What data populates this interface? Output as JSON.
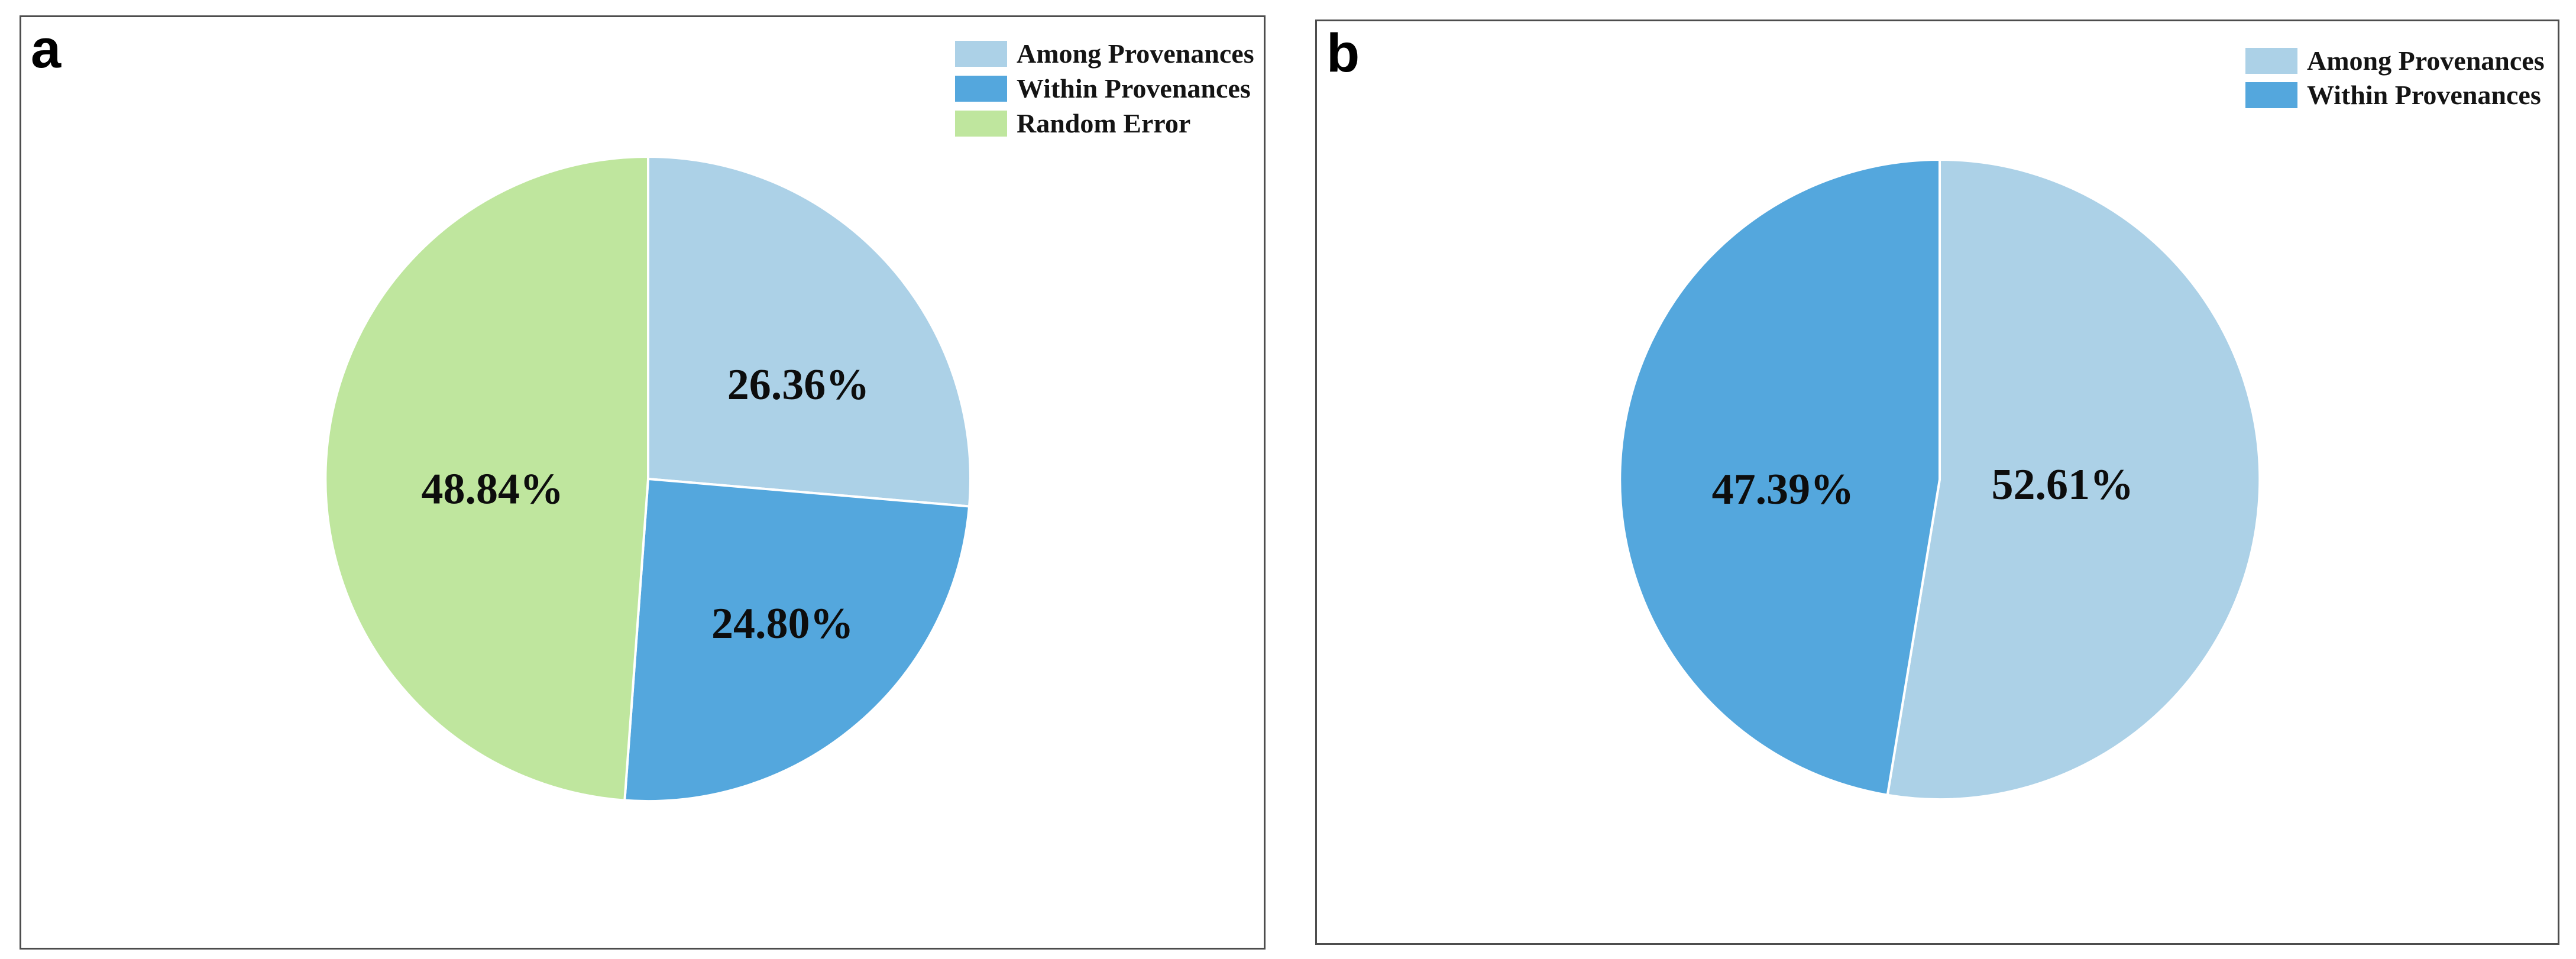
{
  "figure": {
    "background": "#ffffff",
    "panels": [
      {
        "label": "a",
        "legend": [
          {
            "label": "Among Provenances",
            "color": "#ACD1E7"
          },
          {
            "label": "Within Provenances",
            "color": "#54A7DD"
          },
          {
            "label": "Random Error",
            "color": "#BFE69E"
          }
        ]
      },
      {
        "label": "b",
        "legend": [
          {
            "label": "Among Provenances",
            "color": "#ACD1E7"
          },
          {
            "label": "Within Provenances",
            "color": "#54A7DD"
          }
        ]
      }
    ]
  },
  "colors": {
    "among_provenances": "#ACD1E7",
    "within_provenances": "#54A7DD",
    "random_error": "#BFE69E",
    "slice_separator": "#ffffff",
    "panel_border": "#4d4d4d"
  },
  "chart_data": [
    {
      "type": "pie",
      "panel": "a",
      "title": "",
      "start_angle": "12-oclock",
      "direction": "clockwise",
      "legend_position": "top-right",
      "labels_inside": true,
      "slices": [
        {
          "label": "Among Provenances",
          "value": 26.36,
          "display": "26.36%",
          "color": "#ACD1E7"
        },
        {
          "label": "Within Provenances",
          "value": 24.8,
          "display": "24.80%",
          "color": "#54A7DD"
        },
        {
          "label": "Random Error",
          "value": 48.84,
          "display": "48.84%",
          "color": "#BFE69E"
        }
      ]
    },
    {
      "type": "pie",
      "panel": "b",
      "title": "",
      "start_angle": "12-oclock",
      "direction": "clockwise",
      "legend_position": "top-right",
      "labels_inside": true,
      "slices": [
        {
          "label": "Among Provenances",
          "value": 52.61,
          "display": "52.61%",
          "color": "#ACD1E7"
        },
        {
          "label": "Within Provenances",
          "value": 47.39,
          "display": "47.39%",
          "color": "#54A7DD"
        }
      ]
    }
  ]
}
